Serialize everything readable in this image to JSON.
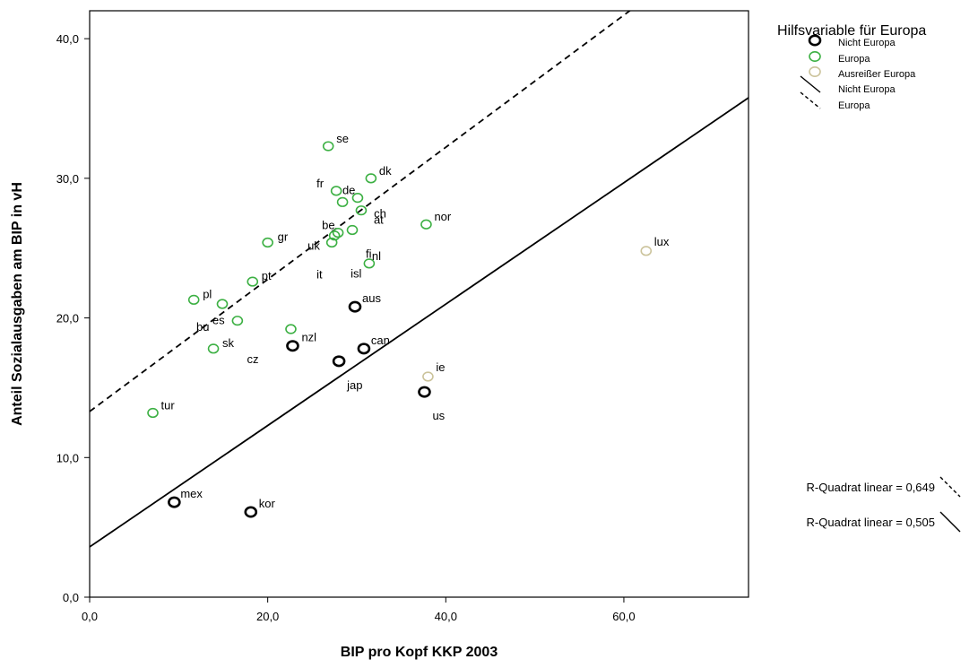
{
  "chart_data": {
    "type": "scatter",
    "xlabel": "BIP pro Kopf KKP 2003",
    "ylabel": "Anteil Sozialausgaben am BIP in vH",
    "xlim": [
      0,
      74
    ],
    "ylim": [
      0,
      42
    ],
    "xticks": [
      0,
      20,
      40,
      60
    ],
    "yticks": [
      0,
      10,
      20,
      30,
      40
    ],
    "xtick_labels": [
      "0,0",
      "20,0",
      "40,0",
      "60,0"
    ],
    "ytick_labels": [
      "0,0",
      "10,0",
      "20,0",
      "30,0",
      "40,0"
    ],
    "grid": false,
    "colors": {
      "nicht_europa": "#000000",
      "europa": "#3cb043",
      "ausreisser": "#cbc39b"
    },
    "series": [
      {
        "name": "Nicht Europa",
        "group": "nicht_europa",
        "points": [
          {
            "label": "aus",
            "x": 29.8,
            "y": 20.8
          },
          {
            "label": "nzl",
            "x": 22.8,
            "y": 18.0
          },
          {
            "label": "can",
            "x": 30.8,
            "y": 17.8
          },
          {
            "label": "jap",
            "x": 28.0,
            "y": 16.9
          },
          {
            "label": "us",
            "x": 37.6,
            "y": 14.7
          },
          {
            "label": "mex",
            "x": 9.5,
            "y": 6.8
          },
          {
            "label": "kor",
            "x": 18.1,
            "y": 6.1
          }
        ]
      },
      {
        "name": "Europa",
        "group": "europa",
        "points": [
          {
            "label": "se",
            "x": 26.8,
            "y": 32.3
          },
          {
            "label": "dk",
            "x": 31.6,
            "y": 30.0
          },
          {
            "label": "fr",
            "x": 27.7,
            "y": 29.1
          },
          {
            "label": "de",
            "x": 30.1,
            "y": 28.6
          },
          {
            "label": "ch",
            "x": 28.4,
            "y": 28.3
          },
          {
            "label": "at",
            "x": 30.5,
            "y": 27.7
          },
          {
            "label": "be",
            "x": 27.9,
            "y": 26.1
          },
          {
            "label": "nor",
            "x": 37.8,
            "y": 26.7
          },
          {
            "label": "uk",
            "x": 27.5,
            "y": 25.9
          },
          {
            "label": "fi",
            "x": 29.5,
            "y": 26.3
          },
          {
            "label": "nl",
            "x": 31.4,
            "y": 23.9
          },
          {
            "label": "it",
            "x": 27.2,
            "y": 25.4
          },
          {
            "label": "isl",
            "x": 27.2,
            "y": 25.4,
            "hidden_marker": true
          },
          {
            "label": "gr",
            "x": 20.0,
            "y": 25.4
          },
          {
            "label": "pt",
            "x": 18.3,
            "y": 22.6
          },
          {
            "label": "pl",
            "x": 11.7,
            "y": 21.3
          },
          {
            "label": "bu",
            "x": 14.9,
            "y": 21.0
          },
          {
            "label": "es",
            "x": 16.6,
            "y": 19.8
          },
          {
            "label": "cz",
            "x": 22.6,
            "y": 19.2
          },
          {
            "label": "sk",
            "x": 13.9,
            "y": 17.8
          },
          {
            "label": "tur",
            "x": 7.1,
            "y": 13.2
          }
        ]
      },
      {
        "name": "Ausreißer Europa",
        "group": "ausreisser",
        "points": [
          {
            "label": "lux",
            "x": 62.5,
            "y": 24.8
          },
          {
            "label": "ie",
            "x": 38.0,
            "y": 15.8
          }
        ]
      }
    ],
    "fit_lines": [
      {
        "name": "Nicht Europa",
        "style": "solid",
        "intercept": 3.6,
        "slope": 0.4347,
        "r2_label": "R-Quadrat linear = 0,505"
      },
      {
        "name": "Europa",
        "style": "dashed",
        "intercept": 13.3,
        "slope": 0.4731,
        "r2_label": "R-Quadrat linear = 0,649"
      }
    ],
    "legend": {
      "title": "Hilfsvariable für Europa",
      "items": [
        {
          "label": "Nicht Europa",
          "kind": "marker",
          "group": "nicht_europa"
        },
        {
          "label": "Europa",
          "kind": "marker",
          "group": "europa"
        },
        {
          "label": "Ausreißer Europa",
          "kind": "marker",
          "group": "ausreisser"
        },
        {
          "label": "Nicht Europa",
          "kind": "line",
          "style": "solid"
        },
        {
          "label": "Europa",
          "kind": "line",
          "style": "dashed"
        }
      ],
      "placement": "top-right"
    }
  }
}
